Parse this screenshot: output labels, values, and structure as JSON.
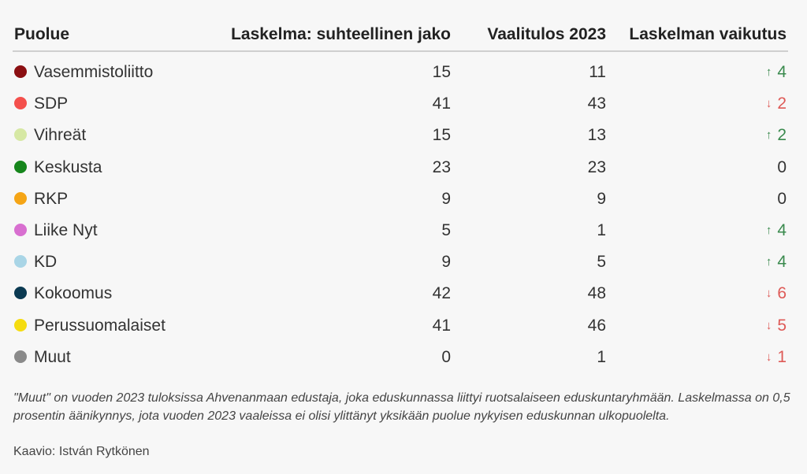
{
  "chart_data": {
    "type": "table",
    "columns": [
      "Puolue",
      "Laskelma: suhteellinen jako",
      "Vaalitulos 2023",
      "Laskelman vaikutus"
    ],
    "rows": [
      {
        "party": "Vasemmistoliitto",
        "color": "#8b0f12",
        "calc": 15,
        "result": 11,
        "effect": 4,
        "direction": "up"
      },
      {
        "party": "SDP",
        "color": "#f4504c",
        "calc": 41,
        "result": 43,
        "effect": 2,
        "direction": "down"
      },
      {
        "party": "Vihreät",
        "color": "#d6e8a4",
        "calc": 15,
        "result": 13,
        "effect": 2,
        "direction": "up"
      },
      {
        "party": "Keskusta",
        "color": "#16861c",
        "calc": 23,
        "result": 23,
        "effect": 0,
        "direction": "none"
      },
      {
        "party": "RKP",
        "color": "#f5a516",
        "calc": 9,
        "result": 9,
        "effect": 0,
        "direction": "none"
      },
      {
        "party": "Liike Nyt",
        "color": "#d86fd0",
        "calc": 5,
        "result": 1,
        "effect": 4,
        "direction": "up"
      },
      {
        "party": "KD",
        "color": "#a9d5e6",
        "calc": 9,
        "result": 5,
        "effect": 4,
        "direction": "up"
      },
      {
        "party": "Kokoomus",
        "color": "#0b3a52",
        "calc": 42,
        "result": 48,
        "effect": 6,
        "direction": "down"
      },
      {
        "party": "Perussuomalaiset",
        "color": "#f5dc10",
        "calc": 41,
        "result": 46,
        "effect": 5,
        "direction": "down"
      },
      {
        "party": "Muut",
        "color": "#8a8a8a",
        "calc": 0,
        "result": 1,
        "effect": 1,
        "direction": "down"
      }
    ],
    "colors": {
      "up": "#3a8a4e",
      "down": "#de5a57"
    }
  },
  "note": "\"Muut\" on vuoden 2023 tuloksissa Ahvenanmaan edustaja, joka eduskunnassa liittyi ruotsalaiseen eduskuntaryhmään. Laskelmassa on 0,5 prosentin äänikynnys, jota vuoden 2023 vaaleissa ei olisi ylittänyt yksikään puolue nykyisen eduskunnan ulkopuolelta.",
  "credit": "Kaavio: István Rytkönen"
}
